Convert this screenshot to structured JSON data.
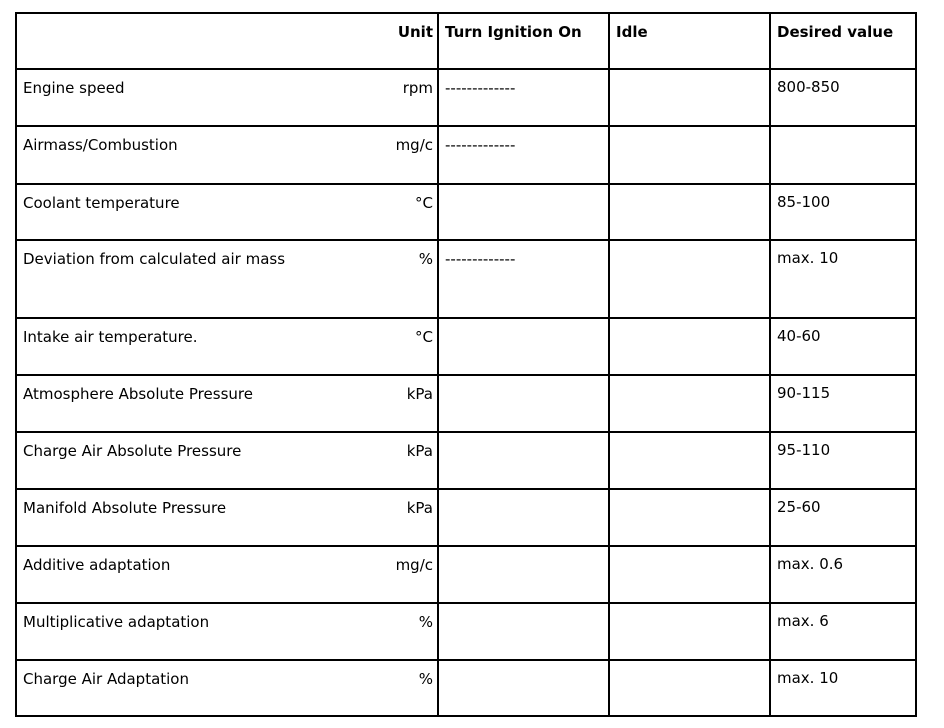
{
  "table": {
    "header": [
      "Unit",
      "Turn Ignition On",
      "Idle",
      "Desired value"
    ],
    "rows": [
      {
        "name": "Engine speed",
        "unit": "rpm",
        "ignition": "-------------",
        "desired": "800-850"
      },
      {
        "name": "Airmass/Combustion",
        "unit": "mg/c",
        "ignition": "-------------"
      },
      {
        "name": "Coolant temperature",
        "unit": "°C",
        "desired": "85-100"
      },
      {
        "name": "Deviation from calculated air mass",
        "unit": "%",
        "ignition": "-------------",
        "desired": "max. 10"
      },
      {
        "name": "Intake air temperature.",
        "unit": "°C",
        "desired": "40-60"
      },
      {
        "name": "Atmosphere Absolute Pressure",
        "unit": "kPa",
        "desired": "90-115"
      },
      {
        "name": "Charge Air Absolute Pressure",
        "unit": "kPa",
        "desired": "95-110"
      },
      {
        "name": "Manifold Absolute Pressure",
        "unit": "kPa",
        "desired": "25-60"
      },
      {
        "name": "Additive adaptation",
        "unit": "mg/c",
        "desired": "max. 0.6"
      },
      {
        "name": "Multiplicative adaptation",
        "unit": "%",
        "desired": "max. 6"
      },
      {
        "name": "Charge Air Adaptation",
        "unit": "%",
        "desired": "max. 10"
      }
    ]
  }
}
